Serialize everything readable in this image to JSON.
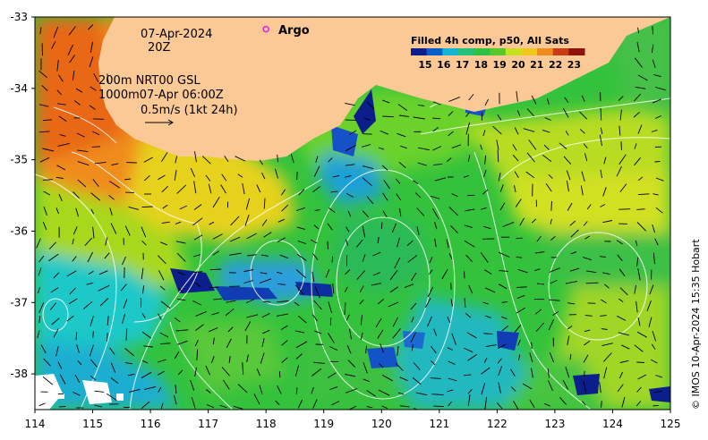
{
  "map": {
    "date_label": "07-Apr-2024",
    "time_label": "20Z",
    "depth_line1": "200m  NRT00 GSL",
    "depth_line2": "1000m07-Apr 06:00Z",
    "scale_label": "0.5m/s (1kt 24h)",
    "argo_label": "Argo",
    "credit": "© IMOS 10-Apr-2024 15:35 Hobart",
    "lon_ticks": [
      "114",
      "115",
      "116",
      "117",
      "118",
      "119",
      "120",
      "121",
      "122",
      "123",
      "124",
      "125"
    ],
    "lat_ticks": [
      "-33",
      "-34",
      "-35",
      "-36",
      "-37",
      "-38"
    ],
    "lon_range": [
      114,
      125
    ],
    "lat_range": [
      -38.5,
      -33
    ],
    "argo_position": {
      "lon": 118.0,
      "lat": -33.17
    },
    "colors": {
      "land": "#fbc995",
      "argo": "#e020e0",
      "contour": "#ffffff",
      "arrow": "#000000"
    }
  },
  "colorbar": {
    "title": "Filled 4h comp, p50, All Sats",
    "labels": [
      "15",
      "16",
      "17",
      "18",
      "19",
      "20",
      "21",
      "22",
      "23"
    ],
    "colors": [
      "#0b1e8c",
      "#0a5ec8",
      "#16b4d2",
      "#26c07a",
      "#2fc044",
      "#59c829",
      "#c8e11e",
      "#f0c81e",
      "#f08c1e",
      "#c83c14",
      "#8c140a"
    ]
  }
}
